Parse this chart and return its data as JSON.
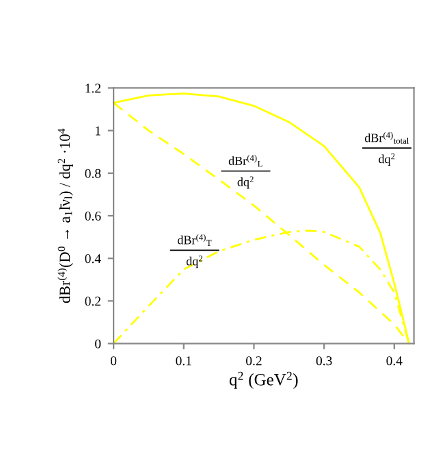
{
  "chart_data": {
    "type": "line",
    "xlabel": "q$^{2}$ (GeV$^{2}$)",
    "ylabel": "dBr$^{(4)}$(D$^{0}$ → a$_{1}$l̄ν$_{l}$) / dq$^{2}$ ·10$^{4}$",
    "xlim": [
      0,
      0.428
    ],
    "ylim": [
      0,
      1.2
    ],
    "xticks": [
      0,
      0.1,
      0.2,
      0.3,
      0.4
    ],
    "yticks": [
      0,
      0.2,
      0.4,
      0.6,
      0.8,
      1,
      1.2
    ],
    "grid": false,
    "legend": false,
    "marker": "none",
    "series": [
      {
        "name": "dBr$^{(4)}$$_{total}$\ndq$^{2}$",
        "color": "#ffff00",
        "line_style": "solid",
        "x": [
          0,
          0.05,
          0.1,
          0.15,
          0.2,
          0.25,
          0.3,
          0.35,
          0.38,
          0.4,
          0.41,
          0.421
        ],
        "values": [
          1.13,
          1.165,
          1.174,
          1.16,
          1.116,
          1.04,
          0.927,
          0.734,
          0.52,
          0.283,
          0.15,
          0
        ]
      },
      {
        "name": "dBr$^{(4)}$$_{L}$\ndq$^{2}$",
        "color": "#ffff00",
        "line_style": "dashed",
        "x": [
          0,
          0.05,
          0.1,
          0.15,
          0.2,
          0.25,
          0.3,
          0.35,
          0.4,
          0.421
        ],
        "values": [
          1.13,
          1.0,
          0.89,
          0.77,
          0.648,
          0.51,
          0.369,
          0.24,
          0.09,
          0
        ]
      },
      {
        "name": "dBr$^{(4)}$$_{T}$\ndq$^{2}$",
        "color": "#ffff00",
        "line_style": "dashdot",
        "x": [
          0,
          0.05,
          0.1,
          0.15,
          0.2,
          0.25,
          0.28,
          0.3,
          0.35,
          0.38,
          0.4,
          0.421
        ],
        "values": [
          0,
          0.176,
          0.348,
          0.433,
          0.487,
          0.524,
          0.53,
          0.524,
          0.455,
          0.348,
          0.24,
          0
        ]
      }
    ]
  }
}
